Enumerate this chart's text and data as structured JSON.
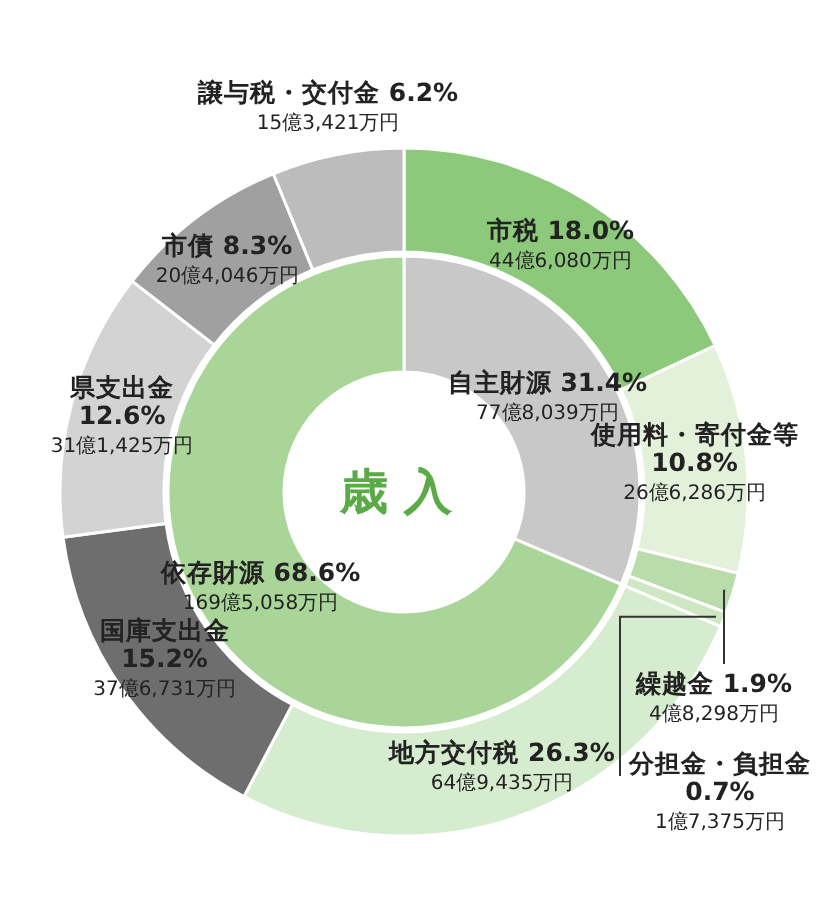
{
  "chart_data": [
    {
      "type": "donut",
      "categories": [
        "市税",
        "使用料・寄付金等",
        "繰越金",
        "分担金・負担金",
        "地方交付税",
        "国庫支出金",
        "県支出金",
        "市債",
        "譲与税・交付金"
      ],
      "values": [
        18.0,
        10.8,
        1.9,
        0.7,
        26.3,
        15.2,
        12.6,
        8.3,
        6.2
      ],
      "colors": [
        "#8cc97a",
        "#e3f1da",
        "#b9dcaa",
        "#cfe8c3",
        "#d6ecce",
        "#6e6e6e",
        "#d3d3d3",
        "#a0a0a0",
        "#bcbcbc"
      ],
      "value_labels": [
        "18.0%",
        "10.8%",
        "1.9%",
        "0.7%",
        "26.3%",
        "15.2%",
        "12.6%",
        "8.3%",
        "6.2%"
      ],
      "annotations": [
        {
          "text": "44億6,080万円",
          "x": "市税"
        },
        {
          "text": "26億6,286万円",
          "x": "使用料・寄付金等"
        },
        {
          "text": "4億8,298万円",
          "x": "繰越金"
        },
        {
          "text": "1億7,375万円",
          "x": "分担金・負担金"
        },
        {
          "text": "64億9,435万円",
          "x": "地方交付税"
        },
        {
          "text": "37億6,731万円",
          "x": "国庫支出金"
        },
        {
          "text": "31億1,425万円",
          "x": "県支出金"
        },
        {
          "text": "20億4,046万円",
          "x": "市債"
        },
        {
          "text": "15億3,421万円",
          "x": "譲与税・交付金"
        }
      ]
    },
    {
      "type": "donut",
      "title": "歳入",
      "categories": [
        "自主財源",
        "依存財源"
      ],
      "values": [
        31.4,
        68.6
      ],
      "colors": [
        "#c8c8c8",
        "#a9d598"
      ],
      "value_labels": [
        "31.4%",
        "68.6%"
      ],
      "annotations": [
        {
          "text": "77億8,039万円",
          "x": "自主財源"
        },
        {
          "text": "169億5,058万円",
          "x": "依存財源"
        }
      ]
    }
  ]
}
